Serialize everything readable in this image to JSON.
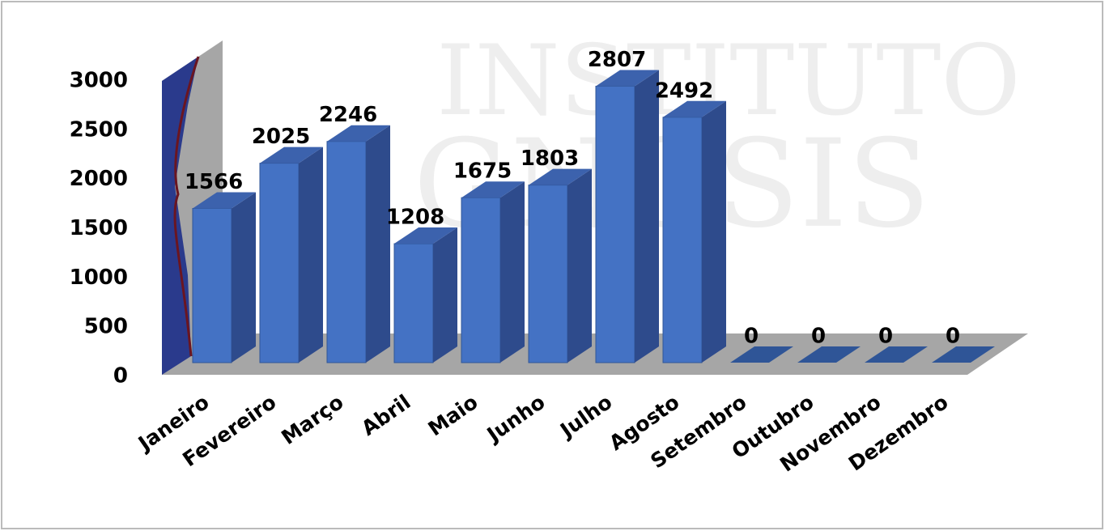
{
  "chart_data": {
    "type": "bar3d",
    "watermark": [
      "INSTITUTO",
      "GNOSIS"
    ],
    "categories": [
      "Janeiro",
      "Fevereiro",
      "Março",
      "Abril",
      "Maio",
      "Junho",
      "Julho",
      "Agosto",
      "Setembro",
      "Outubro",
      "Novembro",
      "Dezembro"
    ],
    "values": [
      1566,
      2025,
      2246,
      1208,
      1675,
      1803,
      2807,
      2492,
      0,
      0,
      0,
      0
    ],
    "color": "#4472c4",
    "ylim": [
      0,
      3000
    ],
    "yticks": [
      0,
      500,
      1000,
      1500,
      2000,
      2500,
      3000
    ]
  }
}
